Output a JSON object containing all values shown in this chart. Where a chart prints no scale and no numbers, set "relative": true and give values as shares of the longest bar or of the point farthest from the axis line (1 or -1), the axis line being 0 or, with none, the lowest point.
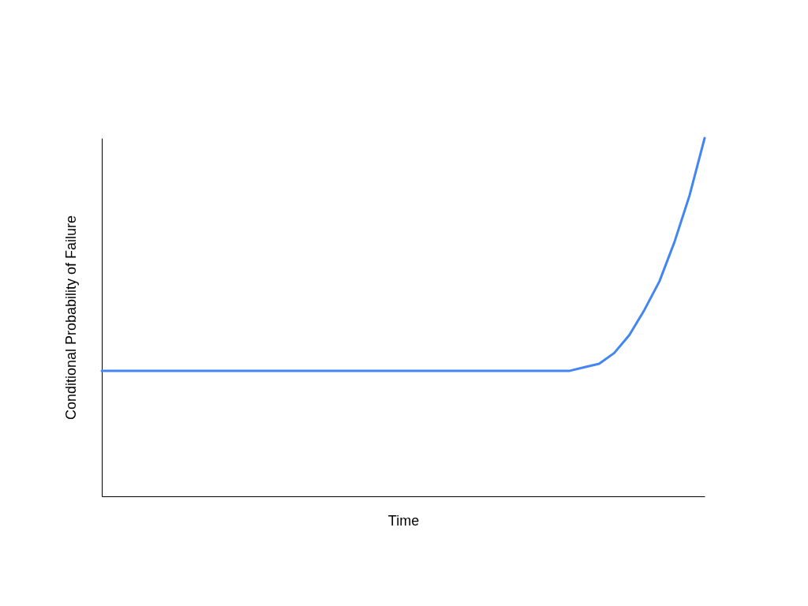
{
  "chart_data": {
    "type": "line",
    "relative": true,
    "xlabel": "Time",
    "ylabel": "Conditional Probability of Failure",
    "categories": [
      null,
      null,
      null,
      null,
      null,
      null,
      null,
      null,
      null,
      null,
      null,
      null,
      null,
      null,
      null,
      null,
      null,
      null,
      null,
      null,
      null,
      null,
      null,
      null,
      null,
      null,
      null,
      null,
      null,
      null,
      null,
      null,
      null,
      null,
      null,
      null,
      null,
      null,
      null,
      null,
      null
    ],
    "series": [
      {
        "color": "#4285f4",
        "values": [
          0.35,
          0.35,
          0.35,
          0.35,
          0.35,
          0.35,
          0.35,
          0.35,
          0.35,
          0.35,
          0.35,
          0.35,
          0.35,
          0.35,
          0.35,
          0.35,
          0.35,
          0.35,
          0.35,
          0.35,
          0.35,
          0.35,
          0.35,
          0.35,
          0.35,
          0.35,
          0.35,
          0.35,
          0.35,
          0.35,
          0.35,
          0.35,
          0.36,
          0.37,
          0.4,
          0.45,
          0.52,
          0.6,
          0.71,
          0.84,
          1.0
        ]
      }
    ],
    "grid": false,
    "legend": false,
    "marker": "none",
    "line_style": "solid"
  }
}
